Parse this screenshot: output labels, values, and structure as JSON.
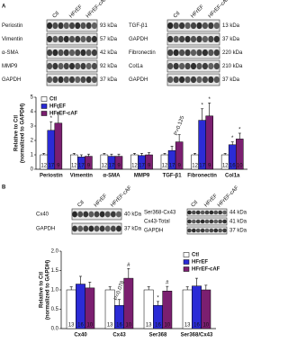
{
  "panel_labels": [
    "A",
    "B"
  ],
  "blots": {
    "A_left": {
      "rows": [
        {
          "label": "Periostin",
          "kda": "93 kDa"
        },
        {
          "label": "Vimentin",
          "kda": "57 kDa"
        },
        {
          "label": "α-SMA",
          "kda": "42 kDa"
        },
        {
          "label": "MMP9",
          "kda": "92 kDa"
        },
        {
          "label": "GAPDH",
          "kda": "37 kDa"
        }
      ]
    },
    "A_right": {
      "rows": [
        {
          "label": "TGF-β1",
          "kda": "13 kDa"
        },
        {
          "label": "GAPDH",
          "kda": "37 kDa"
        },
        {
          "label": "Fibronectin",
          "kda": "220 kDa"
        },
        {
          "label": "Col1a",
          "kda": "210 kDa"
        },
        {
          "label": "GAPDH",
          "kda": "37 kDa"
        }
      ]
    },
    "B_left": {
      "rows": [
        {
          "label": "Cx40",
          "kda": "40 kDa"
        },
        {
          "label": "GAPDH",
          "kda": "37 kDa"
        }
      ]
    },
    "B_right": {
      "rows": [
        {
          "label": "Ser368-Cx43",
          "kda": "44 kDa"
        },
        {
          "label": "Cx43-Total",
          "kda": "41 kDa"
        },
        {
          "label": "GAPDH",
          "kda": "37 kDa"
        }
      ]
    }
  },
  "chart_data": [
    {
      "type": "bar",
      "ylabel": [
        "Relative to Ctl",
        "(normalized to GAPDH)"
      ],
      "categories": [
        "Periostin",
        "Vimentin",
        "α-SMA",
        "MMP9",
        "TGF-β1",
        "Fibronectin",
        "Col1a"
      ],
      "ylim": [
        0,
        5
      ],
      "yticks": [
        0,
        1,
        2,
        3,
        4,
        5
      ],
      "series": [
        {
          "name": "Ctl",
          "color": "#ffffff",
          "values": [
            1,
            1,
            1,
            1,
            1,
            1,
            1
          ],
          "errors": [
            0.1,
            0.1,
            0.1,
            0.1,
            0.1,
            0.1,
            0.1
          ],
          "n": [
            12,
            12,
            12,
            12,
            12,
            12,
            12
          ]
        },
        {
          "name": "HFrEF",
          "color": "#2b2bd6",
          "values": [
            2.7,
            0.85,
            0.9,
            0.95,
            1.3,
            3.4,
            1.7
          ],
          "errors": [
            0.6,
            0.15,
            0.15,
            0.15,
            0.3,
            0.8,
            0.2
          ],
          "n": [
            17,
            17,
            17,
            17,
            17,
            17,
            16
          ]
        },
        {
          "name": "HFrEF-cAF",
          "color": "#7b1f70",
          "values": [
            3.2,
            0.9,
            0.9,
            1.0,
            1.9,
            3.7,
            2.1
          ],
          "errors": [
            0.7,
            0.15,
            0.15,
            0.15,
            0.5,
            0.9,
            0.4
          ],
          "n": [
            9,
            9,
            9,
            9,
            9,
            9,
            10
          ]
        }
      ],
      "annotations": [
        {
          "text": "*",
          "category": 0,
          "series": 1
        },
        {
          "text": "*",
          "category": 0,
          "series": 2
        },
        {
          "text": "P=0.125",
          "category": 4,
          "series": 2
        },
        {
          "text": "*",
          "category": 5,
          "series": 1
        },
        {
          "text": "*",
          "category": 5,
          "series": 2
        },
        {
          "text": "*",
          "category": 6,
          "series": 1
        },
        {
          "text": "*",
          "category": 6,
          "series": 2
        }
      ]
    },
    {
      "type": "bar",
      "ylabel": [
        "Relative to Ctl",
        "(normalized to GAPDH)"
      ],
      "categories": [
        "Cx40",
        "Cx43",
        "Ser368",
        "Ser368/Cx43"
      ],
      "ylim": [
        0,
        2
      ],
      "yticks": [
        {
          "value": 0,
          "label": "0.0"
        },
        {
          "value": 0.5,
          "label": "0.5"
        },
        {
          "value": 1,
          "label": "1.0"
        },
        {
          "value": 1.5,
          "label": "1.5"
        },
        {
          "value": 2,
          "label": "2.0"
        }
      ],
      "series": [
        {
          "name": "Ctl",
          "color": "#ffffff",
          "values": [
            1,
            1,
            1,
            1
          ],
          "errors": [
            0.08,
            0.08,
            0.08,
            0.08
          ],
          "n": [
            13,
            13,
            13,
            13
          ]
        },
        {
          "name": "HFrEF",
          "color": "#2b2bd6",
          "values": [
            1.15,
            0.6,
            0.6,
            1.1
          ],
          "errors": [
            0.2,
            0.15,
            0.1,
            0.2
          ],
          "n": [
            16,
            16,
            16,
            16
          ]
        },
        {
          "name": "HFrEF-cAF",
          "color": "#7b1f70",
          "values": [
            1.05,
            1.3,
            0.97,
            1.0
          ],
          "errors": [
            0.15,
            0.25,
            0.12,
            0.12
          ],
          "n": [
            10,
            10,
            10,
            10
          ]
        }
      ],
      "annotations": [
        {
          "text": "P=0.078",
          "category": 1,
          "series": 1
        },
        {
          "text": "#",
          "category": 1,
          "series": 2
        },
        {
          "text": "*",
          "category": 2,
          "series": 1
        },
        {
          "text": "#",
          "category": 2,
          "series": 2
        }
      ]
    }
  ]
}
